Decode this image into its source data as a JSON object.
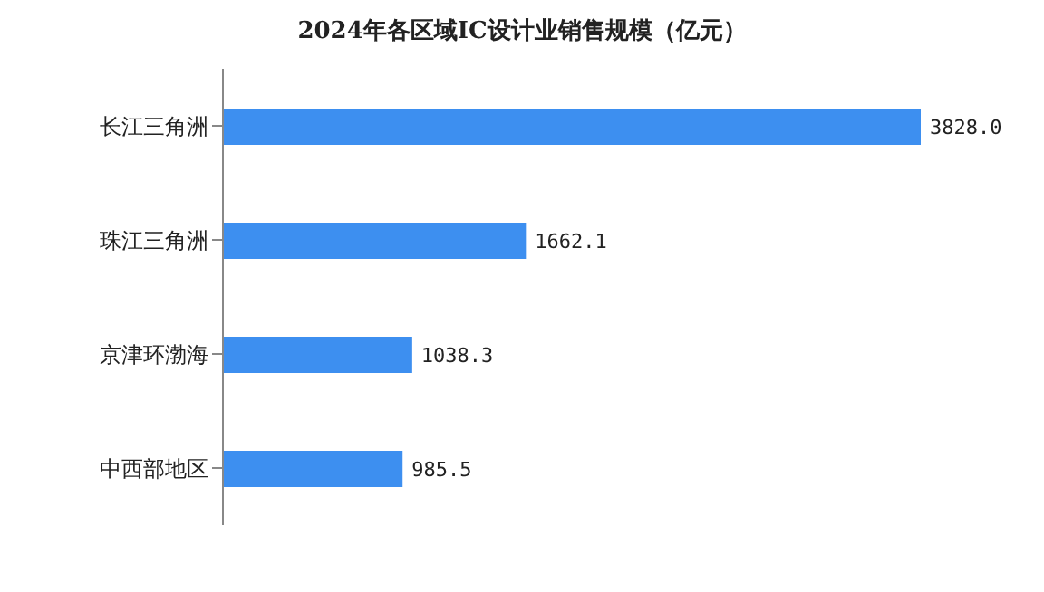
{
  "chart_data": {
    "type": "bar",
    "orientation": "horizontal",
    "title": "2024年各区域IC设计业销售规模（亿元）",
    "categories": [
      "长江三角洲",
      "珠江三角洲",
      "京津环渤海",
      "中西部地区"
    ],
    "values": [
      3828.0,
      1662.1,
      1038.3,
      985.5
    ],
    "value_labels": [
      "3828.0",
      "1662.1",
      "1038.3",
      "985.5"
    ],
    "color": "#3d8ff0",
    "grid": false,
    "legend": false
  }
}
